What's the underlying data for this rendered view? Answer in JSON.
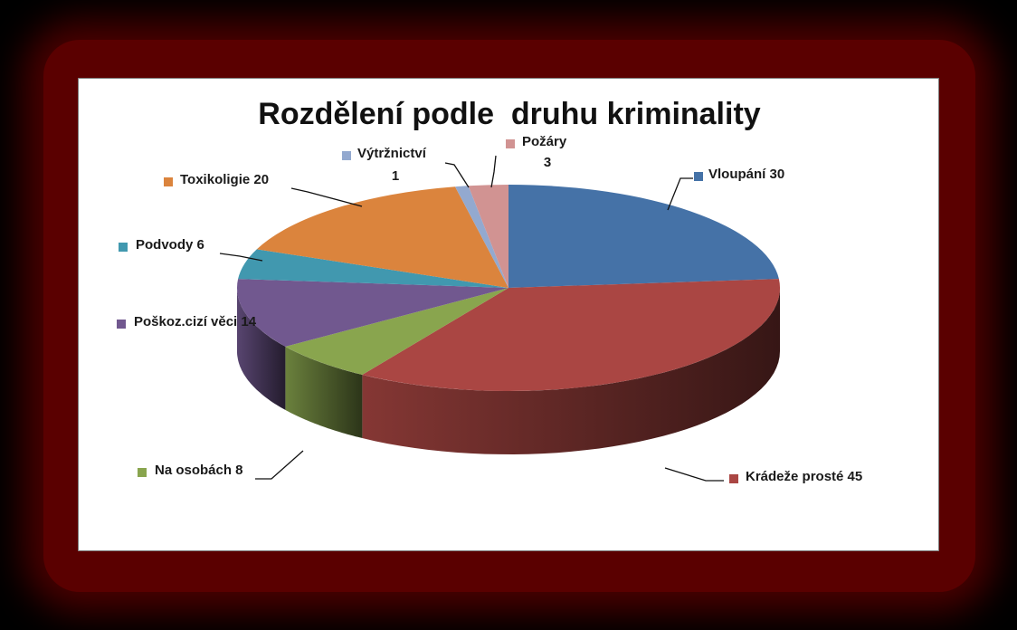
{
  "chart_data": {
    "type": "pie",
    "title": "Rozdělení podle  druhu kriminality",
    "three_d": true,
    "legend": "none",
    "slices": [
      {
        "label": "Vloupání",
        "value": 30,
        "color": "#4572a7",
        "text": "Vloupání  30"
      },
      {
        "label": "Krádeže prosté",
        "value": 45,
        "color": "#aa4643",
        "text": "Krádeže prosté   45"
      },
      {
        "label": "Na osobách",
        "value": 8,
        "color": "#89a54e",
        "text": "Na osobách   8"
      },
      {
        "label": "Poškoz.cizí věci",
        "value": 14,
        "color": "#71588f",
        "text": "Poškoz.cizí věci  14"
      },
      {
        "label": "Podvody",
        "value": 6,
        "color": "#4198af",
        "text": "Podvody  6"
      },
      {
        "label": "Toxikoligie",
        "value": 20,
        "color": "#db843d",
        "text": "Toxikoligie  20"
      },
      {
        "label": "Výtržnictví",
        "value": 1,
        "color": "#93a9cf",
        "text": "Výtržnictví",
        "text2": "1"
      },
      {
        "label": "Požáry",
        "value": 3,
        "color": "#d19392",
        "text": "Požáry",
        "text2": "3"
      }
    ]
  }
}
